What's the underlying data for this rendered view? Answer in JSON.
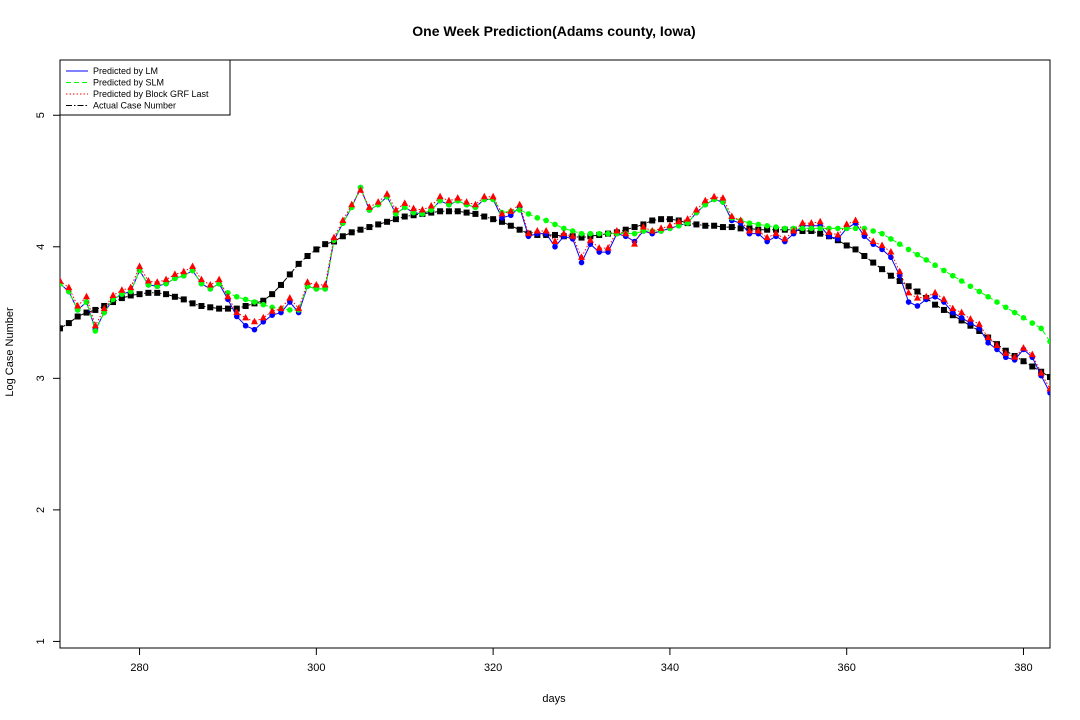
{
  "chart_data": {
    "type": "line",
    "title": "One Week Prediction(Adams county, Iowa)",
    "xlabel": "days",
    "ylabel": "Log Case Number",
    "xlim": [
      271,
      383
    ],
    "ylim": [
      0.95,
      5.42
    ],
    "x_ticks": [
      280,
      300,
      320,
      340,
      360,
      380
    ],
    "y_ticks": [
      1,
      2,
      3,
      4,
      5
    ],
    "grid": false,
    "legend_position": "top-left",
    "legend": [
      {
        "label": "Predicted by LM",
        "color": "#0000ff",
        "dash": "solid"
      },
      {
        "label": "Predicted by SLM",
        "color": "#00ff00",
        "dash": "dashed"
      },
      {
        "label": "Predicted by Block GRF Last",
        "color": "#ff0000",
        "dash": "dotted"
      },
      {
        "label": "Actual Case Number",
        "color": "#000000",
        "dash": "dashdot"
      }
    ],
    "series": [
      {
        "name": "Predicted by LM",
        "color": "#0000ff",
        "marker": "circle",
        "x": [
          271,
          272,
          273,
          274,
          275,
          276,
          277,
          278,
          279,
          280,
          281,
          282,
          283,
          284,
          285,
          286,
          287,
          288,
          289,
          290,
          291,
          292,
          293,
          294,
          295,
          296,
          297,
          298,
          299,
          300,
          301,
          302,
          303,
          304,
          305,
          306,
          307,
          308,
          309,
          310,
          311,
          312,
          313,
          314,
          315,
          316,
          317,
          318,
          319,
          320,
          321,
          322,
          323,
          324,
          325,
          326,
          327,
          328,
          329,
          330,
          331,
          332,
          333,
          334,
          335,
          336,
          337,
          338,
          339,
          340,
          341,
          342,
          343,
          344,
          345,
          346,
          347,
          348,
          349,
          350,
          351,
          352,
          353,
          354,
          355,
          356,
          357,
          358,
          359,
          360,
          361,
          362,
          363,
          364,
          365,
          366,
          367,
          368,
          369,
          370,
          371,
          372,
          373,
          374,
          375,
          376,
          377,
          378,
          379,
          380,
          381,
          382,
          383
        ],
        "y": [
          3.72,
          3.66,
          3.52,
          3.58,
          3.37,
          3.5,
          3.6,
          3.64,
          3.66,
          3.82,
          3.71,
          3.7,
          3.72,
          3.76,
          3.78,
          3.82,
          3.72,
          3.68,
          3.72,
          3.6,
          3.47,
          3.4,
          3.37,
          3.43,
          3.48,
          3.5,
          3.58,
          3.5,
          3.7,
          3.68,
          3.68,
          4.05,
          4.18,
          4.3,
          4.45,
          4.28,
          4.32,
          4.38,
          4.25,
          4.3,
          4.26,
          4.25,
          4.28,
          4.35,
          4.32,
          4.35,
          4.32,
          4.3,
          4.36,
          4.36,
          4.22,
          4.24,
          4.3,
          4.08,
          4.1,
          4.1,
          4.0,
          4.08,
          4.06,
          3.88,
          4.02,
          3.96,
          3.96,
          4.1,
          4.08,
          4.04,
          4.12,
          4.1,
          4.12,
          4.14,
          4.16,
          4.18,
          4.26,
          4.32,
          4.36,
          4.34,
          4.2,
          4.18,
          4.1,
          4.1,
          4.04,
          4.08,
          4.04,
          4.1,
          4.16,
          4.16,
          4.16,
          4.08,
          4.06,
          4.14,
          4.18,
          4.08,
          4.02,
          3.98,
          3.92,
          3.78,
          3.58,
          3.55,
          3.6,
          3.62,
          3.58,
          3.5,
          3.46,
          3.42,
          3.38,
          3.27,
          3.22,
          3.16,
          3.14,
          3.22,
          3.16,
          3.02,
          2.89
        ]
      },
      {
        "name": "Predicted by SLM",
        "color": "#00ff00",
        "marker": "circle",
        "x": [
          271,
          272,
          273,
          274,
          275,
          276,
          277,
          278,
          279,
          280,
          281,
          282,
          283,
          284,
          285,
          286,
          287,
          288,
          289,
          290,
          291,
          292,
          293,
          294,
          295,
          296,
          297,
          298,
          299,
          300,
          301,
          302,
          303,
          304,
          305,
          306,
          307,
          308,
          309,
          310,
          311,
          312,
          313,
          314,
          315,
          316,
          317,
          318,
          319,
          320,
          321,
          322,
          323,
          324,
          325,
          326,
          327,
          328,
          329,
          330,
          331,
          332,
          333,
          334,
          335,
          336,
          337,
          338,
          339,
          340,
          341,
          342,
          343,
          344,
          345,
          346,
          347,
          348,
          349,
          350,
          351,
          352,
          353,
          354,
          355,
          356,
          357,
          358,
          359,
          360,
          361,
          362,
          363,
          364,
          365,
          366,
          367,
          368,
          369,
          370,
          371,
          372,
          373,
          374,
          375,
          376,
          377,
          378,
          379,
          380,
          381,
          382,
          383
        ],
        "y": [
          3.72,
          3.66,
          3.52,
          3.58,
          3.36,
          3.5,
          3.6,
          3.64,
          3.66,
          3.82,
          3.71,
          3.7,
          3.72,
          3.76,
          3.78,
          3.82,
          3.72,
          3.68,
          3.72,
          3.65,
          3.62,
          3.6,
          3.58,
          3.56,
          3.54,
          3.53,
          3.52,
          3.52,
          3.7,
          3.68,
          3.68,
          4.05,
          4.18,
          4.3,
          4.45,
          4.28,
          4.32,
          4.38,
          4.25,
          4.3,
          4.26,
          4.25,
          4.28,
          4.35,
          4.32,
          4.35,
          4.32,
          4.3,
          4.36,
          4.36,
          4.26,
          4.27,
          4.28,
          4.25,
          4.22,
          4.2,
          4.17,
          4.14,
          4.12,
          4.1,
          4.1,
          4.1,
          4.1,
          4.1,
          4.1,
          4.1,
          4.12,
          4.12,
          4.12,
          4.14,
          4.16,
          4.18,
          4.26,
          4.32,
          4.36,
          4.34,
          4.22,
          4.2,
          4.18,
          4.17,
          4.16,
          4.15,
          4.14,
          4.14,
          4.14,
          4.14,
          4.14,
          4.14,
          4.14,
          4.14,
          4.14,
          4.14,
          4.12,
          4.1,
          4.06,
          4.02,
          3.98,
          3.94,
          3.9,
          3.86,
          3.82,
          3.78,
          3.74,
          3.7,
          3.66,
          3.62,
          3.58,
          3.54,
          3.5,
          3.46,
          3.42,
          3.38,
          3.28
        ]
      },
      {
        "name": "Predicted by Block GRF Last",
        "color": "#ff0000",
        "marker": "triangle",
        "x": [
          271,
          272,
          273,
          274,
          275,
          276,
          277,
          278,
          279,
          280,
          281,
          282,
          283,
          284,
          285,
          286,
          287,
          288,
          289,
          290,
          291,
          292,
          293,
          294,
          295,
          296,
          297,
          298,
          299,
          300,
          301,
          302,
          303,
          304,
          305,
          306,
          307,
          308,
          309,
          310,
          311,
          312,
          313,
          314,
          315,
          316,
          317,
          318,
          319,
          320,
          321,
          322,
          323,
          324,
          325,
          326,
          327,
          328,
          329,
          330,
          331,
          332,
          333,
          334,
          335,
          336,
          337,
          338,
          339,
          340,
          341,
          342,
          343,
          344,
          345,
          346,
          347,
          348,
          349,
          350,
          351,
          352,
          353,
          354,
          355,
          356,
          357,
          358,
          359,
          360,
          361,
          362,
          363,
          364,
          365,
          366,
          367,
          368,
          369,
          370,
          371,
          372,
          373,
          374,
          375,
          376,
          377,
          378,
          379,
          380,
          381,
          382,
          383
        ],
        "y": [
          3.74,
          3.69,
          3.55,
          3.62,
          3.4,
          3.53,
          3.63,
          3.67,
          3.69,
          3.85,
          3.74,
          3.73,
          3.75,
          3.79,
          3.81,
          3.85,
          3.75,
          3.71,
          3.75,
          3.62,
          3.5,
          3.46,
          3.43,
          3.46,
          3.51,
          3.53,
          3.61,
          3.53,
          3.73,
          3.71,
          3.71,
          4.07,
          4.2,
          4.32,
          4.43,
          4.3,
          4.34,
          4.4,
          4.28,
          4.33,
          4.29,
          4.28,
          4.31,
          4.38,
          4.35,
          4.37,
          4.34,
          4.32,
          4.38,
          4.38,
          4.25,
          4.27,
          4.32,
          4.1,
          4.12,
          4.12,
          4.04,
          4.1,
          4.08,
          3.92,
          4.05,
          3.99,
          3.99,
          4.12,
          4.1,
          4.02,
          4.15,
          4.12,
          4.14,
          4.16,
          4.19,
          4.21,
          4.28,
          4.35,
          4.38,
          4.37,
          4.23,
          4.2,
          4.12,
          4.12,
          4.07,
          4.1,
          4.06,
          4.12,
          4.18,
          4.18,
          4.19,
          4.11,
          4.09,
          4.17,
          4.2,
          4.11,
          4.04,
          4.01,
          3.96,
          3.81,
          3.65,
          3.61,
          3.62,
          3.65,
          3.6,
          3.53,
          3.5,
          3.45,
          3.41,
          3.31,
          3.25,
          3.19,
          3.16,
          3.23,
          3.18,
          3.04,
          2.92
        ]
      },
      {
        "name": "Actual Case Number",
        "color": "#000000",
        "marker": "square",
        "x": [
          271,
          272,
          273,
          274,
          275,
          276,
          277,
          278,
          279,
          280,
          281,
          282,
          283,
          284,
          285,
          286,
          287,
          288,
          289,
          290,
          291,
          292,
          293,
          294,
          295,
          296,
          297,
          298,
          299,
          300,
          301,
          302,
          303,
          304,
          305,
          306,
          307,
          308,
          309,
          310,
          311,
          312,
          313,
          314,
          315,
          316,
          317,
          318,
          319,
          320,
          321,
          322,
          323,
          324,
          325,
          326,
          327,
          328,
          329,
          330,
          331,
          332,
          333,
          334,
          335,
          336,
          337,
          338,
          339,
          340,
          341,
          342,
          343,
          344,
          345,
          346,
          347,
          348,
          349,
          350,
          351,
          352,
          353,
          354,
          355,
          356,
          357,
          358,
          359,
          360,
          361,
          362,
          363,
          364,
          365,
          366,
          367,
          368,
          369,
          370,
          371,
          372,
          373,
          374,
          375,
          376,
          377,
          378,
          379,
          380,
          381,
          382,
          383
        ],
        "y": [
          3.38,
          3.42,
          3.47,
          3.5,
          3.52,
          3.55,
          3.58,
          3.61,
          3.63,
          3.64,
          3.65,
          3.65,
          3.64,
          3.62,
          3.6,
          3.57,
          3.55,
          3.54,
          3.53,
          3.53,
          3.53,
          3.55,
          3.57,
          3.59,
          3.64,
          3.71,
          3.79,
          3.87,
          3.93,
          3.98,
          4.02,
          4.04,
          4.08,
          4.11,
          4.13,
          4.15,
          4.17,
          4.19,
          4.21,
          4.23,
          4.24,
          4.25,
          4.26,
          4.27,
          4.27,
          4.27,
          4.26,
          4.25,
          4.23,
          4.21,
          4.19,
          4.16,
          4.13,
          4.1,
          4.09,
          4.09,
          4.09,
          4.08,
          4.08,
          4.07,
          4.08,
          4.09,
          4.1,
          4.11,
          4.13,
          4.15,
          4.17,
          4.2,
          4.21,
          4.21,
          4.2,
          4.18,
          4.17,
          4.16,
          4.16,
          4.15,
          4.15,
          4.14,
          4.14,
          4.13,
          4.13,
          4.13,
          4.13,
          4.13,
          4.12,
          4.12,
          4.1,
          4.08,
          4.05,
          4.01,
          3.98,
          3.93,
          3.88,
          3.83,
          3.78,
          3.74,
          3.7,
          3.66,
          3.61,
          3.56,
          3.52,
          3.48,
          3.44,
          3.4,
          3.36,
          3.31,
          3.26,
          3.21,
          3.17,
          3.13,
          3.09,
          3.05,
          3.01
        ]
      }
    ]
  }
}
